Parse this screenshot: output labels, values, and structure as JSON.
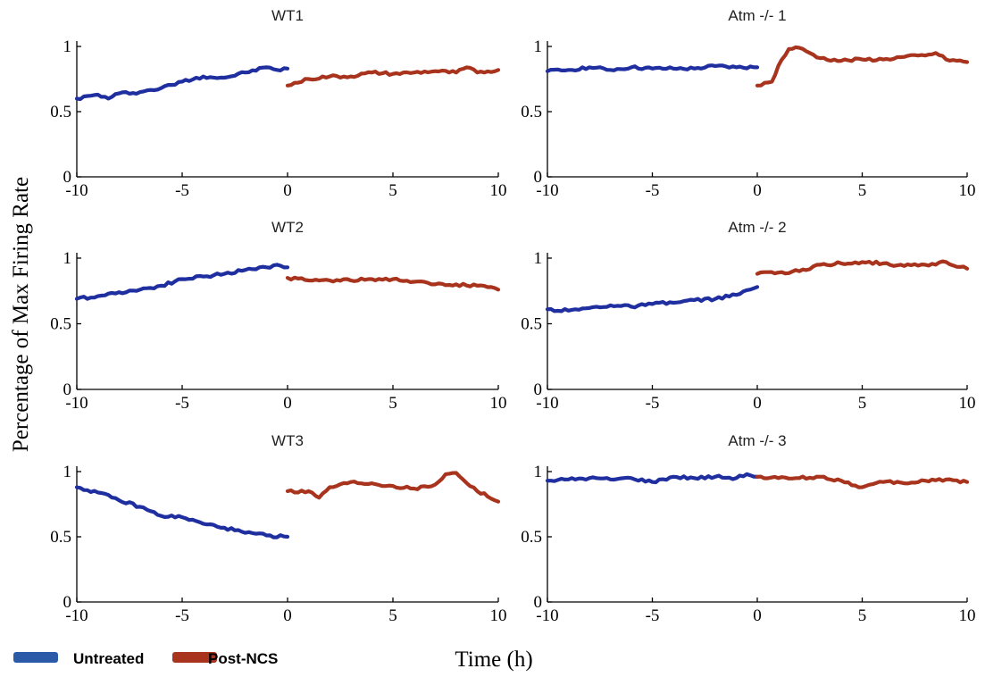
{
  "figure": {
    "ylabel": "Percentage of Max Firing Rate",
    "xlabel": "Time (h)",
    "legend": [
      {
        "label": "Untreated",
        "color": "#2a5aa8"
      },
      {
        "label": "Post-NCS",
        "color": "#a8341e"
      }
    ]
  },
  "chart_data": [
    {
      "type": "line",
      "title": "WT1",
      "xlim": [
        -10,
        10
      ],
      "ylim": [
        0,
        1
      ],
      "xticks": [
        -10,
        -5,
        0,
        5,
        10
      ],
      "xtick_labels": [
        "-10",
        "-5",
        "0",
        "5",
        "10"
      ],
      "yticks": [
        0,
        0.5,
        1
      ],
      "ytick_labels": [
        "0",
        "0.5",
        "1"
      ],
      "series": [
        {
          "name": "Untreated",
          "color": "#1f2fa0",
          "x": [
            -10,
            -9,
            -8.5,
            -8,
            -7,
            -6,
            -5,
            -4,
            -3,
            -2,
            -1,
            -0.5,
            0
          ],
          "y": [
            0.6,
            0.63,
            0.6,
            0.64,
            0.65,
            0.68,
            0.73,
            0.77,
            0.76,
            0.8,
            0.84,
            0.82,
            0.83
          ]
        },
        {
          "name": "Post-NCS",
          "color": "#a8341e",
          "x": [
            0,
            1,
            2,
            3,
            4,
            5,
            6,
            7,
            8,
            8.5,
            9,
            10
          ],
          "y": [
            0.7,
            0.75,
            0.77,
            0.77,
            0.8,
            0.79,
            0.8,
            0.81,
            0.8,
            0.84,
            0.8,
            0.82
          ]
        }
      ]
    },
    {
      "type": "line",
      "title": "Atm -/- 1",
      "xlim": [
        -10,
        10
      ],
      "ylim": [
        0,
        1
      ],
      "xticks": [
        -10,
        -5,
        0,
        5,
        10
      ],
      "xtick_labels": [
        "-10",
        "-5",
        "0",
        "5",
        "10"
      ],
      "yticks": [
        0,
        0.5,
        1
      ],
      "ytick_labels": [
        "0",
        "0.5",
        "1"
      ],
      "series": [
        {
          "name": "Untreated",
          "color": "#1f2fa0",
          "x": [
            -10,
            -9,
            -8,
            -7,
            -6,
            -5,
            -4,
            -3,
            -2,
            -1,
            0
          ],
          "y": [
            0.81,
            0.82,
            0.84,
            0.82,
            0.84,
            0.83,
            0.83,
            0.83,
            0.85,
            0.84,
            0.84
          ]
        },
        {
          "name": "Post-NCS",
          "color": "#a8341e",
          "x": [
            0,
            0.7,
            1,
            1.5,
            2,
            2.5,
            3,
            4,
            5,
            6,
            7,
            8,
            8.5,
            9,
            10
          ],
          "y": [
            0.7,
            0.73,
            0.85,
            0.98,
            0.99,
            0.95,
            0.91,
            0.89,
            0.9,
            0.9,
            0.92,
            0.93,
            0.95,
            0.9,
            0.88
          ]
        }
      ]
    },
    {
      "type": "line",
      "title": "WT2",
      "xlim": [
        -10,
        10
      ],
      "ylim": [
        0,
        1
      ],
      "xticks": [
        -10,
        -5,
        0,
        5,
        10
      ],
      "xtick_labels": [
        "-10",
        "-5",
        "0",
        "5",
        "10"
      ],
      "yticks": [
        0,
        0.5,
        1
      ],
      "ytick_labels": [
        "0",
        "0.5",
        "1"
      ],
      "series": [
        {
          "name": "Untreated",
          "color": "#1f2fa0",
          "x": [
            -10,
            -9,
            -8,
            -7,
            -6,
            -5,
            -4,
            -3,
            -2,
            -1,
            -0.5,
            0
          ],
          "y": [
            0.69,
            0.71,
            0.74,
            0.76,
            0.79,
            0.84,
            0.86,
            0.88,
            0.91,
            0.93,
            0.95,
            0.93
          ]
        },
        {
          "name": "Post-NCS",
          "color": "#a8341e",
          "x": [
            0,
            1,
            2,
            3,
            4,
            5,
            6,
            7,
            8,
            9,
            10
          ],
          "y": [
            0.85,
            0.83,
            0.83,
            0.83,
            0.84,
            0.84,
            0.82,
            0.8,
            0.8,
            0.79,
            0.76
          ]
        }
      ]
    },
    {
      "type": "line",
      "title": "Atm -/- 2",
      "xlim": [
        -10,
        10
      ],
      "ylim": [
        0,
        1
      ],
      "xticks": [
        -10,
        -5,
        0,
        5,
        10
      ],
      "xtick_labels": [
        "-10",
        "-5",
        "0",
        "5",
        "10"
      ],
      "yticks": [
        0,
        0.5,
        1
      ],
      "ytick_labels": [
        "0",
        "0.5",
        "1"
      ],
      "series": [
        {
          "name": "Untreated",
          "color": "#1f2fa0",
          "x": [
            -10,
            -9,
            -8,
            -7,
            -6,
            -5,
            -4,
            -3,
            -2,
            -1,
            0
          ],
          "y": [
            0.61,
            0.6,
            0.62,
            0.64,
            0.63,
            0.65,
            0.66,
            0.68,
            0.69,
            0.72,
            0.78
          ]
        },
        {
          "name": "Post-NCS",
          "color": "#a8341e",
          "x": [
            0,
            1,
            2,
            3,
            4,
            5,
            6,
            7,
            8,
            9,
            10
          ],
          "y": [
            0.88,
            0.89,
            0.9,
            0.95,
            0.96,
            0.97,
            0.96,
            0.94,
            0.95,
            0.97,
            0.92
          ]
        }
      ]
    },
    {
      "type": "line",
      "title": "WT3",
      "xlim": [
        -10,
        10
      ],
      "ylim": [
        0,
        1
      ],
      "xticks": [
        -10,
        -5,
        0,
        5,
        10
      ],
      "xtick_labels": [
        "-10",
        "-5",
        "0",
        "5",
        "10"
      ],
      "yticks": [
        0,
        0.5,
        1
      ],
      "ytick_labels": [
        "0",
        "0.5",
        "1"
      ],
      "series": [
        {
          "name": "Untreated",
          "color": "#1f2fa0",
          "x": [
            -10,
            -9,
            -8,
            -7,
            -6,
            -5,
            -4,
            -3,
            -2,
            -1,
            0
          ],
          "y": [
            0.88,
            0.84,
            0.78,
            0.73,
            0.66,
            0.65,
            0.6,
            0.57,
            0.53,
            0.51,
            0.5
          ]
        },
        {
          "name": "Post-NCS",
          "color": "#a8341e",
          "x": [
            0,
            1,
            1.5,
            2,
            3,
            4,
            5,
            6,
            7,
            7.5,
            8,
            9,
            10
          ],
          "y": [
            0.85,
            0.85,
            0.8,
            0.88,
            0.92,
            0.91,
            0.89,
            0.87,
            0.9,
            0.98,
            0.99,
            0.85,
            0.77
          ]
        }
      ]
    },
    {
      "type": "line",
      "title": "Atm -/- 3",
      "xlim": [
        -10,
        10
      ],
      "ylim": [
        0,
        1
      ],
      "xticks": [
        -10,
        -5,
        0,
        5,
        10
      ],
      "xtick_labels": [
        "-10",
        "-5",
        "0",
        "5",
        "10"
      ],
      "yticks": [
        0,
        0.5,
        1
      ],
      "ytick_labels": [
        "0",
        "0.5",
        "1"
      ],
      "series": [
        {
          "name": "Untreated",
          "color": "#1f2fa0",
          "x": [
            -10,
            -9,
            -8,
            -7,
            -6,
            -5,
            -4,
            -3,
            -2,
            -1,
            -0.5,
            0
          ],
          "y": [
            0.93,
            0.94,
            0.95,
            0.94,
            0.95,
            0.92,
            0.96,
            0.95,
            0.96,
            0.95,
            0.98,
            0.96
          ]
        },
        {
          "name": "Post-NCS",
          "color": "#a8341e",
          "x": [
            0,
            1,
            2,
            3,
            4,
            5,
            6,
            7,
            8,
            9,
            10
          ],
          "y": [
            0.96,
            0.95,
            0.95,
            0.96,
            0.93,
            0.88,
            0.92,
            0.91,
            0.93,
            0.94,
            0.92
          ]
        }
      ]
    }
  ]
}
